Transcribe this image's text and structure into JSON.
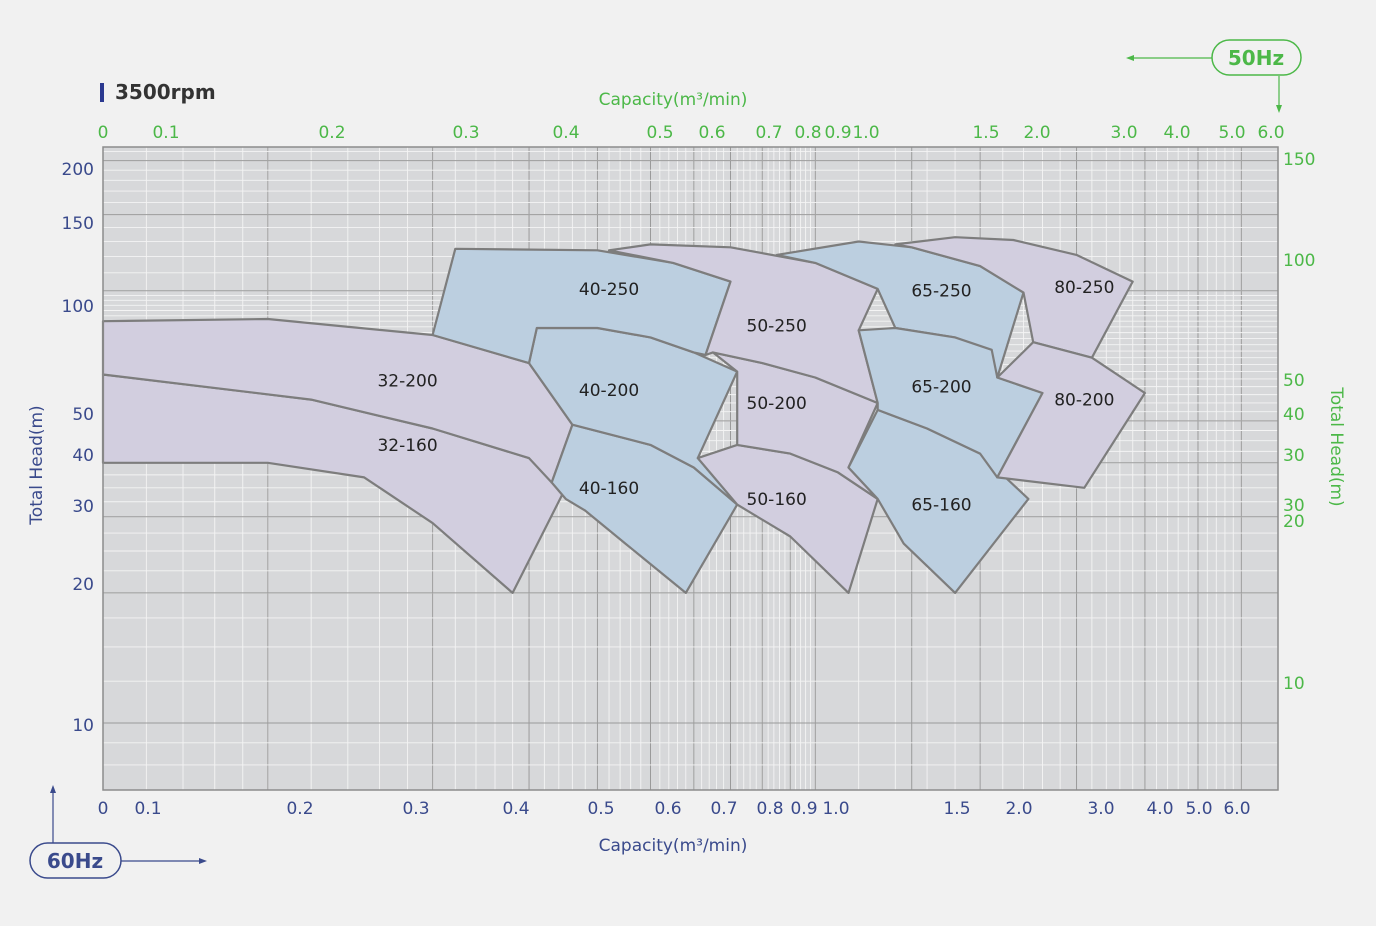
{
  "chart_data": {
    "type": "area",
    "title": "3500rpm",
    "scale": "log-log",
    "grid": true,
    "colors": {
      "purple": "#d2cedf",
      "blue": "#bccfe0",
      "outline": "#7d7d7d",
      "plot_bg": "#d7d8da",
      "freq60": "#3a4a8c",
      "freq50": "#4cb848",
      "title_marker": "#2b3990"
    },
    "axes": {
      "x_bottom": {
        "label": "Capacity(m³/min)",
        "frequency": "60Hz",
        "range": [
          0.05,
          7.0
        ],
        "ticks": [
          "0",
          "0.1",
          "0.2",
          "0.3",
          "0.4",
          "0.5",
          "0.6",
          "0.7",
          "0.8",
          "0.9",
          "1.0",
          "1.5",
          "2.0",
          "3.0",
          "4.0",
          "5.0",
          "6.0"
        ]
      },
      "x_top": {
        "label": "Capacity(m³/min)",
        "frequency": "50Hz",
        "ticks": [
          "0",
          "0.1",
          "0.2",
          "0.3",
          "0.4",
          "0.5",
          "0.6",
          "0.7",
          "0.8",
          "0.9",
          "1.0",
          "1.5",
          "2.0",
          "3.0",
          "4.0",
          "5.0",
          "6.0"
        ]
      },
      "y_left": {
        "label": "Total Head(m)",
        "frequency": "60Hz",
        "range": [
          7.0,
          215
        ],
        "ticks": [
          "200",
          "150",
          "100",
          "50",
          "40",
          "30",
          "20",
          "10"
        ]
      },
      "y_right": {
        "label": "Total Head(m)",
        "frequency": "50Hz",
        "ticks": [
          "150",
          "100",
          "50",
          "40",
          "30",
          "30",
          "20",
          "10"
        ]
      }
    },
    "series": [
      {
        "name": "32-160",
        "color": "purple",
        "outline": [
          [
            0.05,
            64
          ],
          [
            0.12,
            56
          ],
          [
            0.2,
            48
          ],
          [
            0.3,
            41
          ],
          [
            0.35,
            35
          ],
          [
            0.28,
            20
          ],
          [
            0.2,
            29
          ],
          [
            0.15,
            37
          ],
          [
            0.1,
            40
          ],
          [
            0.05,
            40
          ]
        ]
      },
      {
        "name": "32-200",
        "color": "purple",
        "outline": [
          [
            0.05,
            85
          ],
          [
            0.1,
            86
          ],
          [
            0.2,
            79
          ],
          [
            0.3,
            68
          ],
          [
            0.36,
            49
          ],
          [
            0.33,
            36
          ],
          [
            0.3,
            41
          ],
          [
            0.2,
            48
          ],
          [
            0.12,
            56
          ],
          [
            0.05,
            64
          ]
        ]
      },
      {
        "name": "40-160",
        "color": "blue",
        "outline": [
          [
            0.36,
            49
          ],
          [
            0.5,
            44
          ],
          [
            0.6,
            39
          ],
          [
            0.72,
            32
          ],
          [
            0.58,
            20
          ],
          [
            0.45,
            26
          ],
          [
            0.38,
            31
          ],
          [
            0.35,
            33
          ],
          [
            0.33,
            36
          ]
        ]
      },
      {
        "name": "40-200",
        "color": "blue",
        "outline": [
          [
            0.31,
            82
          ],
          [
            0.4,
            82
          ],
          [
            0.5,
            78
          ],
          [
            0.6,
            72
          ],
          [
            0.72,
            65
          ],
          [
            0.61,
            41
          ],
          [
            0.72,
            32
          ],
          [
            0.6,
            39
          ],
          [
            0.5,
            44
          ],
          [
            0.36,
            49
          ],
          [
            0.3,
            68
          ]
        ]
      },
      {
        "name": "40-250",
        "color": "blue",
        "outline": [
          [
            0.22,
            125
          ],
          [
            0.4,
            124
          ],
          [
            0.55,
            116
          ],
          [
            0.7,
            105
          ],
          [
            0.63,
            71
          ],
          [
            0.6,
            72
          ],
          [
            0.5,
            78
          ],
          [
            0.4,
            82
          ],
          [
            0.31,
            82
          ],
          [
            0.3,
            68
          ],
          [
            0.2,
            79
          ]
        ]
      },
      {
        "name": "50-160",
        "color": "purple",
        "outline": [
          [
            0.72,
            44
          ],
          [
            0.9,
            42
          ],
          [
            1.1,
            38
          ],
          [
            1.3,
            33
          ],
          [
            1.15,
            20
          ],
          [
            0.9,
            27
          ],
          [
            0.72,
            32
          ],
          [
            0.61,
            41
          ]
        ]
      },
      {
        "name": "50-200",
        "color": "purple",
        "outline": [
          [
            0.65,
            72
          ],
          [
            0.8,
            68
          ],
          [
            1.0,
            63
          ],
          [
            1.3,
            55
          ],
          [
            1.15,
            39
          ],
          [
            1.3,
            33
          ],
          [
            1.1,
            38
          ],
          [
            0.9,
            42
          ],
          [
            0.72,
            44
          ],
          [
            0.72,
            65
          ]
        ]
      },
      {
        "name": "50-250",
        "color": "purple",
        "outline": [
          [
            0.42,
            124
          ],
          [
            0.5,
            128
          ],
          [
            0.7,
            126
          ],
          [
            1.0,
            116
          ],
          [
            1.3,
            101
          ],
          [
            1.2,
            81
          ],
          [
            1.3,
            55
          ],
          [
            1.0,
            63
          ],
          [
            0.8,
            68
          ],
          [
            0.65,
            72
          ],
          [
            0.63,
            71
          ],
          [
            0.7,
            105
          ],
          [
            0.55,
            116
          ]
        ]
      },
      {
        "name": "65-160",
        "color": "blue",
        "outline": [
          [
            1.3,
            53
          ],
          [
            1.6,
            48
          ],
          [
            2.0,
            42
          ],
          [
            2.45,
            33
          ],
          [
            1.8,
            20
          ],
          [
            1.45,
            26
          ],
          [
            1.3,
            33
          ],
          [
            1.15,
            39
          ]
        ]
      },
      {
        "name": "65-250",
        "color": "blue",
        "outline": [
          [
            0.85,
            121
          ],
          [
            1.2,
            130
          ],
          [
            1.5,
            126
          ],
          [
            2.0,
            114
          ],
          [
            2.4,
            99
          ],
          [
            2.15,
            63
          ],
          [
            1.8,
            78
          ],
          [
            1.4,
            82
          ],
          [
            1.3,
            101
          ],
          [
            1.0,
            116
          ]
        ]
      },
      {
        "name": "65-200",
        "color": "blue",
        "outline": [
          [
            1.4,
            82
          ],
          [
            1.8,
            78
          ],
          [
            2.1,
            73
          ],
          [
            2.15,
            63
          ],
          [
            2.6,
            58
          ],
          [
            2.4,
            48
          ],
          [
            2.15,
            37
          ],
          [
            2.0,
            42
          ],
          [
            1.6,
            48
          ],
          [
            1.3,
            53
          ],
          [
            1.3,
            55
          ],
          [
            1.2,
            81
          ]
        ]
      },
      {
        "name": "80-250",
        "color": "purple",
        "outline": [
          [
            1.4,
            128
          ],
          [
            1.8,
            133
          ],
          [
            2.3,
            131
          ],
          [
            3.0,
            121
          ],
          [
            3.8,
            105
          ],
          [
            3.2,
            70
          ],
          [
            2.5,
            76
          ],
          [
            2.4,
            99
          ],
          [
            2.0,
            114
          ],
          [
            1.5,
            126
          ]
        ]
      },
      {
        "name": "80-200",
        "color": "purple",
        "outline": [
          [
            2.15,
            63
          ],
          [
            2.5,
            76
          ],
          [
            3.2,
            70
          ],
          [
            4.0,
            58
          ],
          [
            3.1,
            35
          ],
          [
            2.15,
            37
          ],
          [
            2.4,
            48
          ],
          [
            2.6,
            58
          ]
        ]
      }
    ],
    "labels": [
      {
        "text": "32-200",
        "x": 0.18,
        "y": 62
      },
      {
        "text": "32-160",
        "x": 0.18,
        "y": 44
      },
      {
        "text": "40-250",
        "x": 0.42,
        "y": 101
      },
      {
        "text": "40-200",
        "x": 0.42,
        "y": 59
      },
      {
        "text": "40-160",
        "x": 0.42,
        "y": 35
      },
      {
        "text": "50-250",
        "x": 0.85,
        "y": 83
      },
      {
        "text": "50-200",
        "x": 0.85,
        "y": 55
      },
      {
        "text": "50-160",
        "x": 0.85,
        "y": 33
      },
      {
        "text": "65-250",
        "x": 1.7,
        "y": 100
      },
      {
        "text": "65-200",
        "x": 1.7,
        "y": 60
      },
      {
        "text": "65-160",
        "x": 1.7,
        "y": 32
      },
      {
        "text": "80-250",
        "x": 3.1,
        "y": 102
      },
      {
        "text": "80-200",
        "x": 3.1,
        "y": 56
      }
    ]
  }
}
